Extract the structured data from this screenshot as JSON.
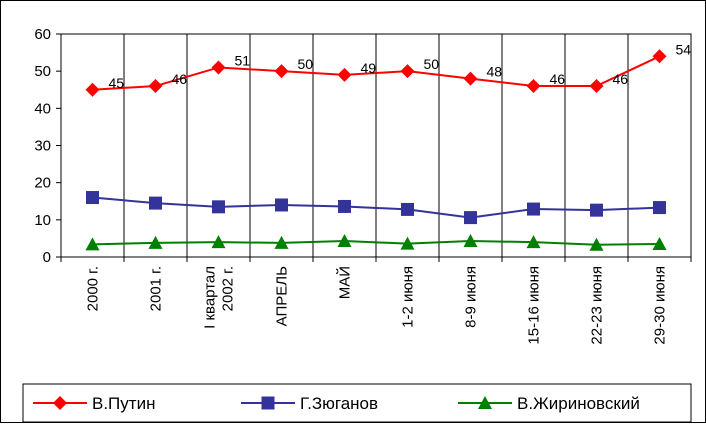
{
  "chart_data": {
    "type": "line",
    "categories": [
      "2000 г.",
      "2001 г.",
      [
        "I квартал",
        "2002 г."
      ],
      "АПРЕЛЬ",
      "МАЙ",
      "1-2 июня",
      "8-9 июня",
      "15-16 июня",
      "22-23 июня",
      "29-30 июня"
    ],
    "ylim": [
      0,
      60
    ],
    "yticks": [
      0,
      10,
      20,
      30,
      40,
      50,
      60
    ],
    "grid": "vertical",
    "legend_position": "bottom",
    "series": [
      {
        "name": "В.Путин",
        "color": "#ff0000",
        "marker": "diamond",
        "values": [
          45,
          46,
          51,
          50,
          49,
          50,
          48,
          46,
          46,
          54
        ],
        "data_labels": [
          "45",
          "46",
          "51",
          "50",
          "49",
          "50",
          "48",
          "46",
          "46",
          "54"
        ]
      },
      {
        "name": "Г.Зюганов",
        "color": "#333399",
        "marker": "square",
        "values": [
          16,
          14.5,
          13.5,
          14,
          13.6,
          12.8,
          10.6,
          12.9,
          12.6,
          13.3
        ]
      },
      {
        "name": "В.Жириновский",
        "color": "#008000",
        "marker": "triangle",
        "values": [
          3.4,
          3.8,
          4,
          3.8,
          4.3,
          3.6,
          4.3,
          4,
          3.3,
          3.5
        ]
      }
    ]
  }
}
